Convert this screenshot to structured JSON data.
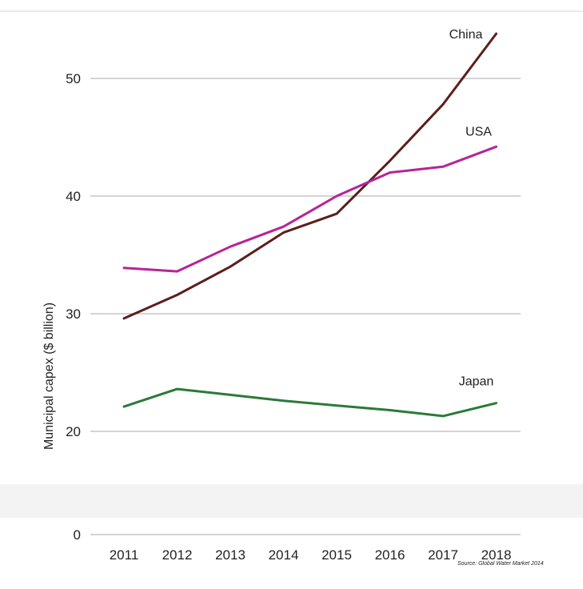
{
  "chart_data": {
    "type": "line",
    "title": "",
    "xlabel": "",
    "ylabel": "Municipal capex ($ billion)",
    "x": [
      "2011",
      "2012",
      "2013",
      "2014",
      "2015",
      "2016",
      "2017",
      "2018"
    ],
    "yticks": [
      0,
      20,
      30,
      40,
      50
    ],
    "ylim": [
      0,
      55
    ],
    "grid": true,
    "legend": "inline labels at line ends",
    "series": [
      {
        "key": "china",
        "name": "China",
        "color": "#5c1f1c",
        "values": [
          29.6,
          31.6,
          34.0,
          36.9,
          38.5,
          43.0,
          47.8,
          53.8
        ]
      },
      {
        "key": "usa",
        "name": "USA",
        "color": "#b5249a",
        "values": [
          33.9,
          33.6,
          35.7,
          37.4,
          40.0,
          42.0,
          42.5,
          44.2
        ]
      },
      {
        "key": "japan",
        "name": "Japan",
        "color": "#2b7a3a",
        "values": [
          22.1,
          23.6,
          23.1,
          22.6,
          22.2,
          21.8,
          21.3,
          22.4
        ]
      }
    ],
    "source": "Source: Global Water Market 2014"
  }
}
